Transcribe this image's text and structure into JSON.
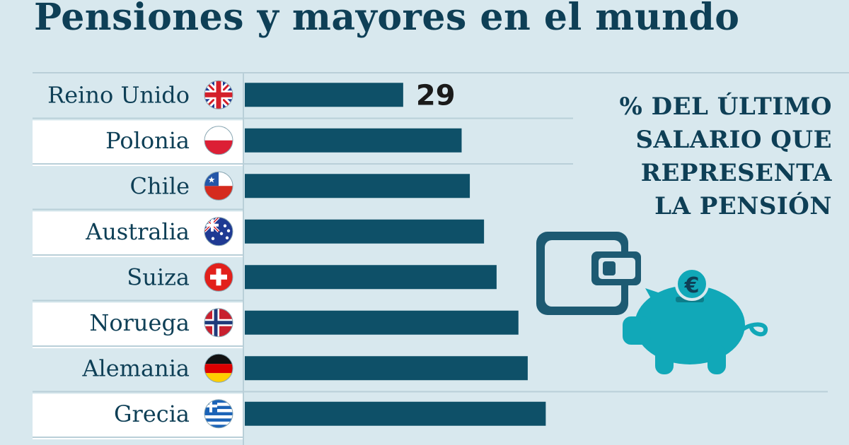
{
  "title": "Pensiones y mayores en el mundo",
  "note": "% DEL ÚLTIMO\nSALARIO QUE\nREPRESENTA\nLA PENSIÓN",
  "colors": {
    "background": "#d8e8ee",
    "bar": "#0e5068",
    "text": "#0e3f56",
    "row_band": "#ffffff",
    "illustration_teal": "#11a8b8",
    "wallet": "#1d5a72"
  },
  "icons": [
    "flag-uk-icon",
    "flag-poland-icon",
    "flag-chile-icon",
    "flag-australia-icon",
    "flag-switzerland-icon",
    "flag-norway-icon",
    "flag-germany-icon",
    "flag-greece-icon",
    "wallet-icon",
    "piggy-bank-icon",
    "euro-coin-icon"
  ],
  "chart_data": {
    "type": "bar",
    "orientation": "horizontal",
    "title": "Pensiones y mayores en el mundo",
    "ylabel": "% DEL ÚLTIMO SALARIO QUE REPRESENTA LA PENSIÓN",
    "categories": [
      "Reino Unido",
      "Polonia",
      "Chile",
      "Australia",
      "Suiza",
      "Noruega",
      "Alemania",
      "Grecia"
    ],
    "values": [
      29,
      39.7,
      41.2,
      43.8,
      46.1,
      50.1,
      51.8,
      55.1
    ],
    "data_labels": [
      "29",
      "",
      "",
      "",
      "",
      "",
      "",
      ""
    ],
    "xlim": [
      0,
      57
    ],
    "grid": false
  }
}
